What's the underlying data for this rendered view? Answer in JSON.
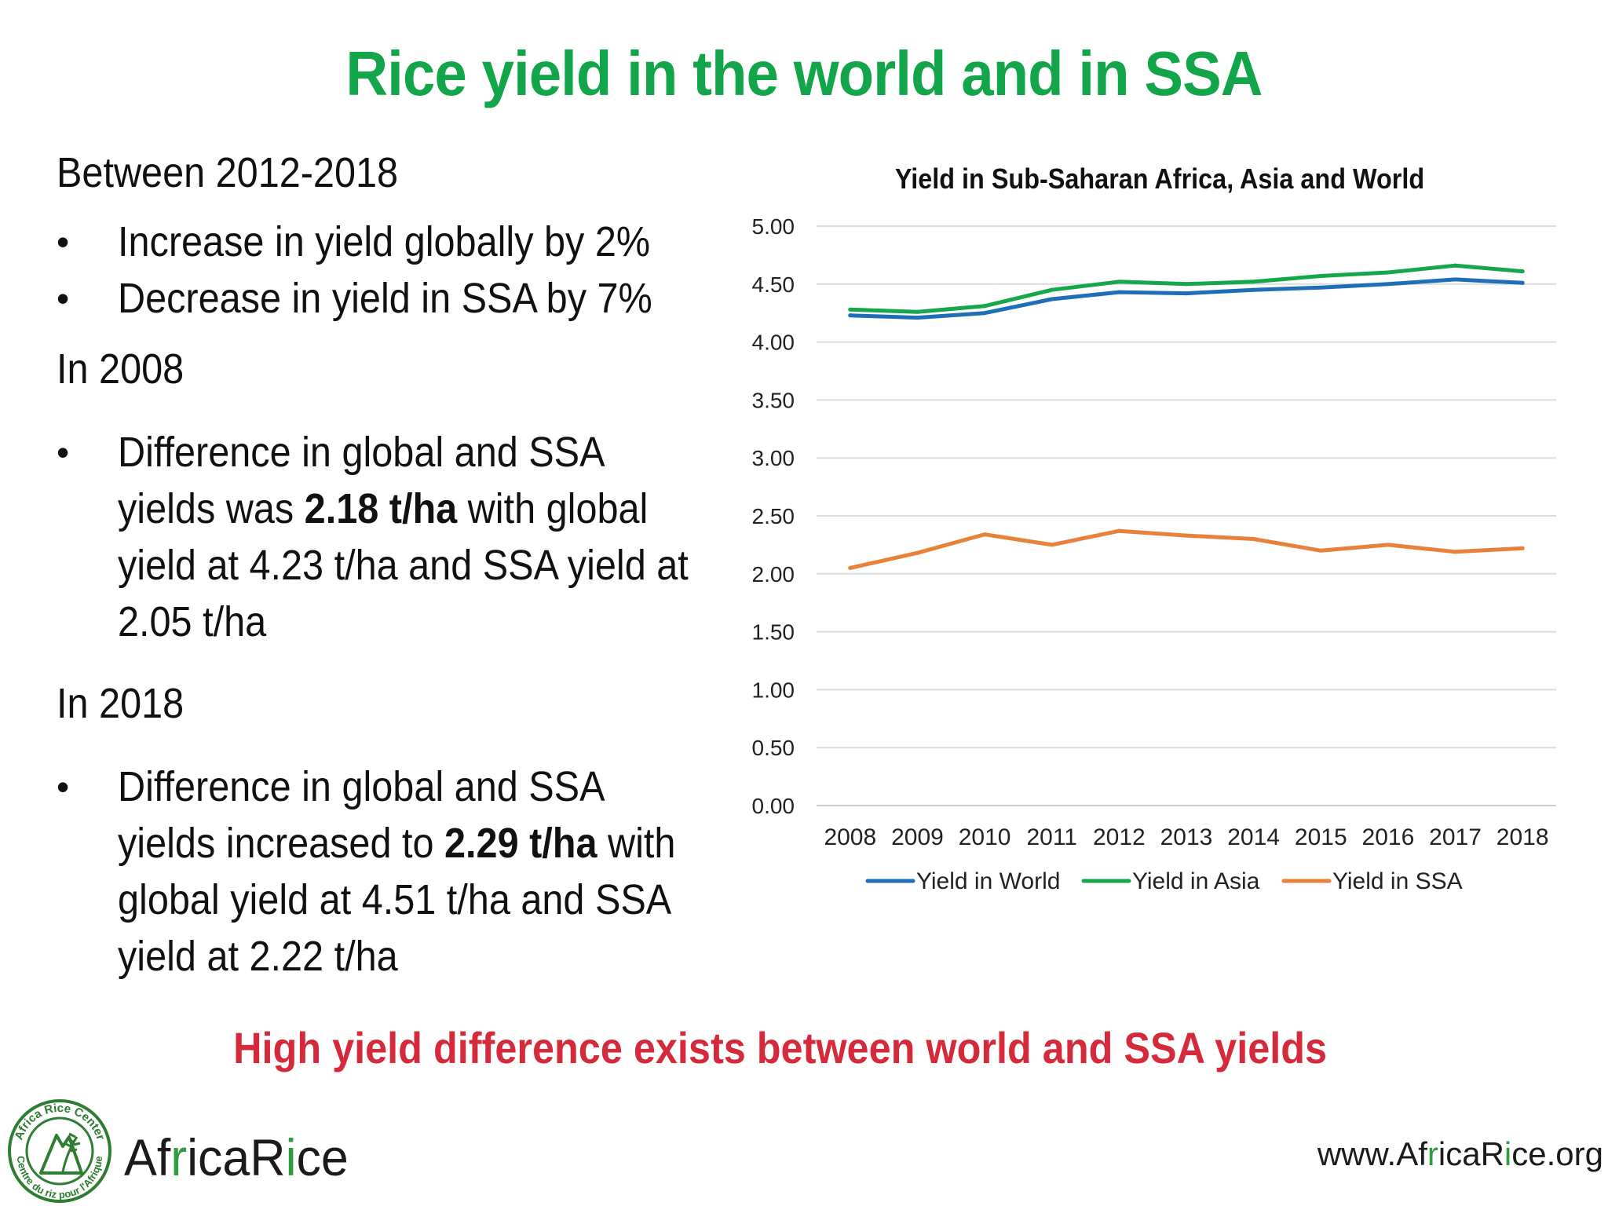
{
  "slide": {
    "title": "Rice yield in the world and in SSA",
    "section1_heading": "Between 2012-2018",
    "section1_bullets": [
      "Increase in yield globally by 2%",
      "Decrease in yield in SSA by 7%"
    ],
    "section2_heading": "In 2008",
    "section2_bullet": {
      "pre": "Difference in global and SSA yields was ",
      "bold": "2.18 t/ha",
      "post": " with global yield at 4.23 t/ha and SSA yield at 2.05 t/ha"
    },
    "section3_heading": "In 2018",
    "section3_bullet": {
      "pre": "Difference in global and SSA yields increased to ",
      "bold": "2.29 t/ha",
      "post": " with global yield at 4.51 t/ha and SSA yield at 2.22 t/ha"
    },
    "conclusion": "High yield difference exists between world and SSA yields",
    "title_color": "#12a54a",
    "conclusion_color": "#d52a3c"
  },
  "logo": {
    "word_part1": "Af",
    "word_part2": "r",
    "word_part3": "ica",
    "word_part4": "R",
    "word_part5": "i",
    "word_part6": "ce",
    "ring_text_top": "Africa Rice Center",
    "ring_text_bottom": "Centre du riz pour l'Afrique"
  },
  "website": {
    "part1": "www.Af",
    "part2": "r",
    "part3": "ica",
    "part4": "R",
    "part5": "i",
    "part6": "ce",
    "part7": ".org"
  },
  "chart_data": {
    "type": "line",
    "title": "Yield in Sub-Saharan Africa, Asia and World",
    "categories": [
      "2008",
      "2009",
      "2010",
      "2011",
      "2012",
      "2013",
      "2014",
      "2015",
      "2016",
      "2017",
      "2018"
    ],
    "ylim": [
      0,
      5
    ],
    "yticks": [
      "0.00",
      "0.50",
      "1.00",
      "1.50",
      "2.00",
      "2.50",
      "3.00",
      "3.50",
      "4.00",
      "4.50",
      "5.00"
    ],
    "grid": true,
    "legend_position": "bottom",
    "series": [
      {
        "name": "Yield in World",
        "color": "#1f6fb8",
        "values": [
          4.23,
          4.21,
          4.25,
          4.37,
          4.43,
          4.42,
          4.45,
          4.47,
          4.5,
          4.54,
          4.51
        ]
      },
      {
        "name": "Yield in Asia",
        "color": "#14a84b",
        "values": [
          4.28,
          4.26,
          4.31,
          4.45,
          4.52,
          4.5,
          4.52,
          4.57,
          4.6,
          4.66,
          4.61
        ]
      },
      {
        "name": "Yield in SSA",
        "color": "#e8823a",
        "values": [
          2.05,
          2.18,
          2.34,
          2.25,
          2.37,
          2.33,
          2.3,
          2.2,
          2.25,
          2.19,
          2.22
        ]
      }
    ]
  }
}
